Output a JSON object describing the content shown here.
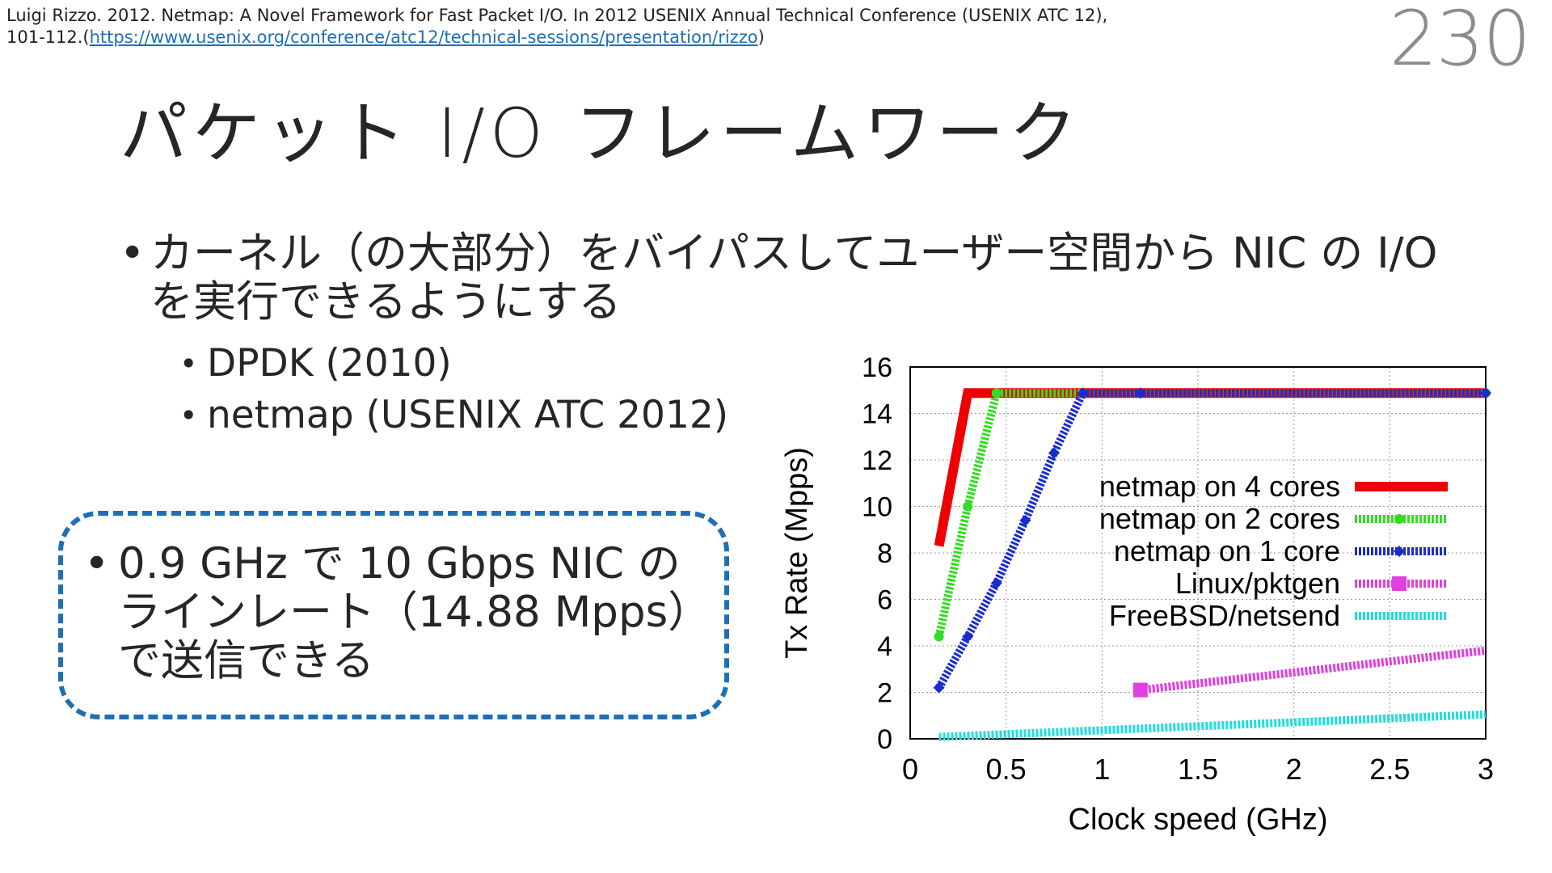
{
  "citation": {
    "text": "Luigi Rizzo. 2012. Netmap: A Novel Framework for Fast Packet I/O. In 2012 USENIX Annual Technical Conference (USENIX ATC 12), 101-112.(",
    "link": "https://www.usenix.org/conference/atc12/technical-sessions/presentation/rizzo",
    "close": ")"
  },
  "slide_number": "230",
  "title": "パケット I/O フレームワーク",
  "bullets": {
    "main": "カーネル（の大部分）をバイパスしてユーザー空間から NIC の I/O を実行できるようにする",
    "sub": [
      "DPDK (2010)",
      "netmap (USENIX ATC 2012)"
    ]
  },
  "callout": {
    "text": "0.9 GHz で 10 Gbps NIC の ラインレート（14.88 Mpps）で送信できる",
    "border_color": "#1f6fb5"
  },
  "chart_data": {
    "type": "line",
    "xlabel": "Clock speed (GHz)",
    "ylabel": "Tx Rate (Mpps)",
    "xlim": [
      0,
      3
    ],
    "ylim": [
      0,
      16
    ],
    "xticks": [
      "0",
      "0.5",
      "1",
      "1.5",
      "2",
      "2.5",
      "3"
    ],
    "yticks": [
      "0",
      "2",
      "4",
      "6",
      "8",
      "10",
      "12",
      "14",
      "16"
    ],
    "grid": true,
    "legend_position": "right",
    "series": [
      {
        "name": "netmap on 4 cores",
        "color": "#ee0000",
        "style": "solid",
        "x": [
          0.15,
          0.3,
          3.0
        ],
        "y": [
          8.3,
          14.88,
          14.88
        ]
      },
      {
        "name": "netmap on 2 cores",
        "color": "#33dd22",
        "style": "dotted",
        "x": [
          0.15,
          0.3,
          0.45,
          3.0
        ],
        "y": [
          4.4,
          10.0,
          14.88,
          14.88
        ]
      },
      {
        "name": "netmap on 1 core",
        "color": "#1a2ccc",
        "style": "dotted",
        "x": [
          0.15,
          0.3,
          0.45,
          0.6,
          0.75,
          0.9,
          1.2,
          3.0
        ],
        "y": [
          2.2,
          4.4,
          6.7,
          9.4,
          12.3,
          14.88,
          14.88,
          14.88
        ]
      },
      {
        "name": "Linux/pktgen",
        "color": "#e040e0",
        "style": "dotted",
        "x": [
          1.2,
          3.0
        ],
        "y": [
          2.1,
          3.8
        ]
      },
      {
        "name": "FreeBSD/netsend",
        "color": "#22dddd",
        "style": "dotted",
        "x": [
          0.15,
          3.0
        ],
        "y": [
          0.08,
          1.05
        ]
      }
    ]
  }
}
